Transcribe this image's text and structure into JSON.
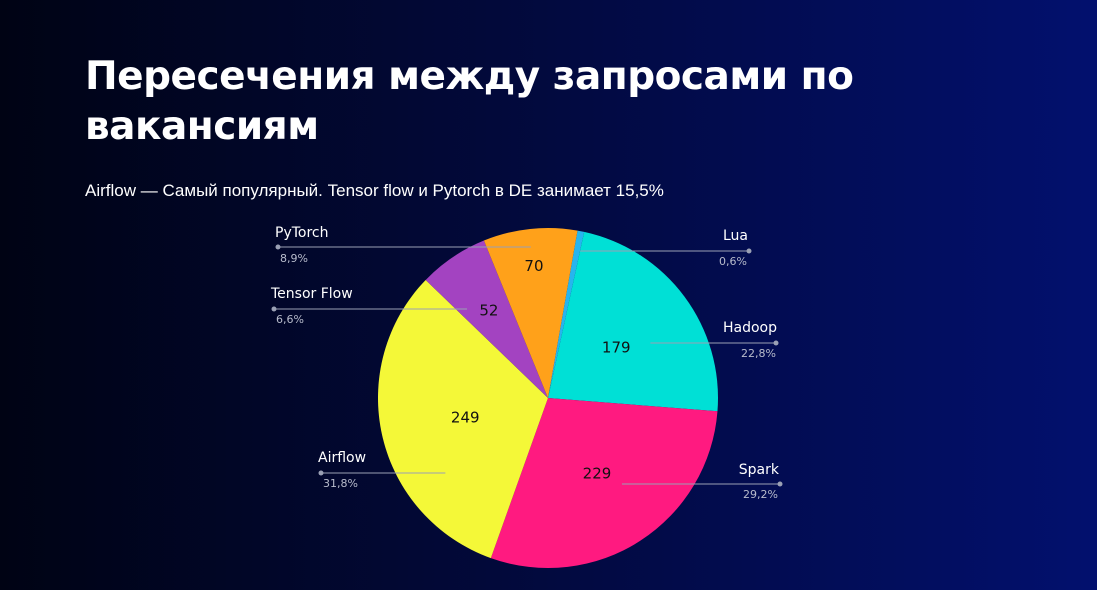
{
  "header": {
    "title": "Пересечения между запросами по вакансиям",
    "subtitle": "Airflow — Самый популярный. Tensor flow и Pytorch в DE занимает 15,5%"
  },
  "chart_data": {
    "type": "pie",
    "slices": [
      {
        "label": "Lua",
        "value": 5,
        "value_label": "",
        "percent_label": "0,6%",
        "color": "#27b5ee"
      },
      {
        "label": "Hadoop",
        "value": 179,
        "value_label": "179",
        "percent_label": "22,8%",
        "color": "#00e0d6"
      },
      {
        "label": "Spark",
        "value": 229,
        "value_label": "229",
        "percent_label": "29,2%",
        "color": "#ff1a80"
      },
      {
        "label": "Airflow",
        "value": 249,
        "value_label": "249",
        "percent_label": "31,8%",
        "color": "#f4f838"
      },
      {
        "label": "Tensor Flow",
        "value": 52,
        "value_label": "52",
        "percent_label": "6,6%",
        "color": "#a343c1"
      },
      {
        "label": "PyTorch",
        "value": 70,
        "value_label": "70",
        "percent_label": "8,9%",
        "color": "#ffa11a"
      }
    ]
  }
}
